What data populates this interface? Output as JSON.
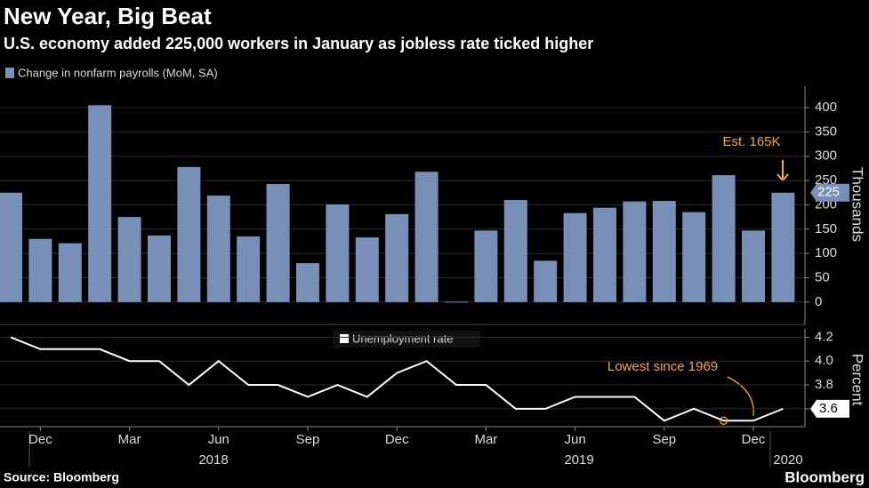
{
  "chart_data": [
    {
      "type": "bar",
      "title": "New Year, Big Beat",
      "subtitle": "U.S. economy added 225,000 workers in January as jobless rate ticked higher",
      "series": [
        {
          "name": "Change in nonfarm payrolls (MoM, SA)",
          "color": "#7890b8",
          "values": [
            225,
            130,
            121,
            405,
            175,
            137,
            278,
            219,
            135,
            243,
            80,
            201,
            133,
            181,
            268,
            1,
            147,
            210,
            85,
            183,
            194,
            207,
            208,
            185,
            261,
            147,
            225
          ]
        }
      ],
      "ylim": [
        -46,
        444
      ],
      "yticks": [
        0,
        50,
        100,
        150,
        200,
        250,
        300,
        350,
        400
      ],
      "y_label": "Thousands",
      "grid": true,
      "annotations": [
        {
          "text": "Est. 165K",
          "color": "#f5a742"
        }
      ]
    },
    {
      "type": "line",
      "series": [
        {
          "name": "Unemployment rate",
          "color": "#ffffff",
          "values": [
            4.2,
            4.1,
            4.1,
            4.1,
            4.0,
            4.0,
            3.8,
            4.0,
            3.8,
            3.8,
            3.7,
            3.8,
            3.7,
            3.9,
            4.0,
            3.8,
            3.8,
            3.6,
            3.6,
            3.7,
            3.7,
            3.7,
            3.5,
            3.6,
            3.5,
            3.5,
            3.6
          ]
        }
      ],
      "categories": [
        null,
        "Dec",
        null,
        null,
        "Mar",
        null,
        null,
        "Jun",
        null,
        null,
        "Sep",
        null,
        null,
        "Dec",
        null,
        null,
        "Mar",
        null,
        null,
        "Jun",
        null,
        null,
        "Sep",
        null,
        null,
        "Dec",
        null
      ],
      "year_labels": [
        "2018",
        "2019",
        "2020"
      ],
      "ylim": [
        3.45,
        4.27
      ],
      "yticks": [
        3.6,
        3.8,
        {
          "value": 4,
          "label": "4.0"
        },
        4.2
      ],
      "y_label": "Percent",
      "grid": true,
      "annotations": [
        {
          "text": "Lowest since 1969",
          "color": "#f5a742"
        }
      ]
    }
  ],
  "source": "Source: Bloomberg",
  "brand": "Bloomberg"
}
